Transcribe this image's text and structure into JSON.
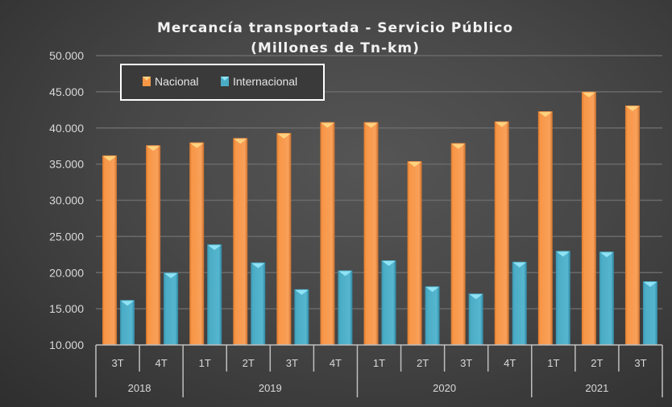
{
  "chart_data": {
    "type": "bar",
    "title": "Mercancía transportada - Servicio Público",
    "subtitle": "(Millones de Tn-km)",
    "xlabel": "",
    "ylabel": "",
    "ylim": [
      10000,
      50000
    ],
    "yticks": [
      10000,
      15000,
      20000,
      25000,
      30000,
      35000,
      40000,
      45000,
      50000
    ],
    "ytick_labels": [
      "10.000",
      "15.000",
      "20.000",
      "25.000",
      "30.000",
      "35.000",
      "40.000",
      "45.000",
      "50.000"
    ],
    "grid": true,
    "legend_position": "top-left",
    "categories": [
      "3T",
      "4T",
      "1T",
      "2T",
      "3T",
      "4T",
      "1T",
      "2T",
      "3T",
      "4T",
      "1T",
      "2T",
      "3T"
    ],
    "groups": [
      {
        "label": "2018",
        "count": 2
      },
      {
        "label": "2019",
        "count": 4
      },
      {
        "label": "2020",
        "count": 4
      },
      {
        "label": "2021",
        "count": 3
      }
    ],
    "series": [
      {
        "name": "Nacional",
        "color": "#f79646",
        "values": [
          36200,
          37600,
          38000,
          38600,
          39300,
          40800,
          40800,
          35400,
          37900,
          40900,
          42300,
          45000,
          43100
        ]
      },
      {
        "name": "Internacional",
        "color": "#4bacc6",
        "values": [
          16200,
          20000,
          23900,
          21400,
          17700,
          20300,
          21700,
          18100,
          17100,
          21500,
          23000,
          22900,
          18800
        ]
      }
    ]
  }
}
